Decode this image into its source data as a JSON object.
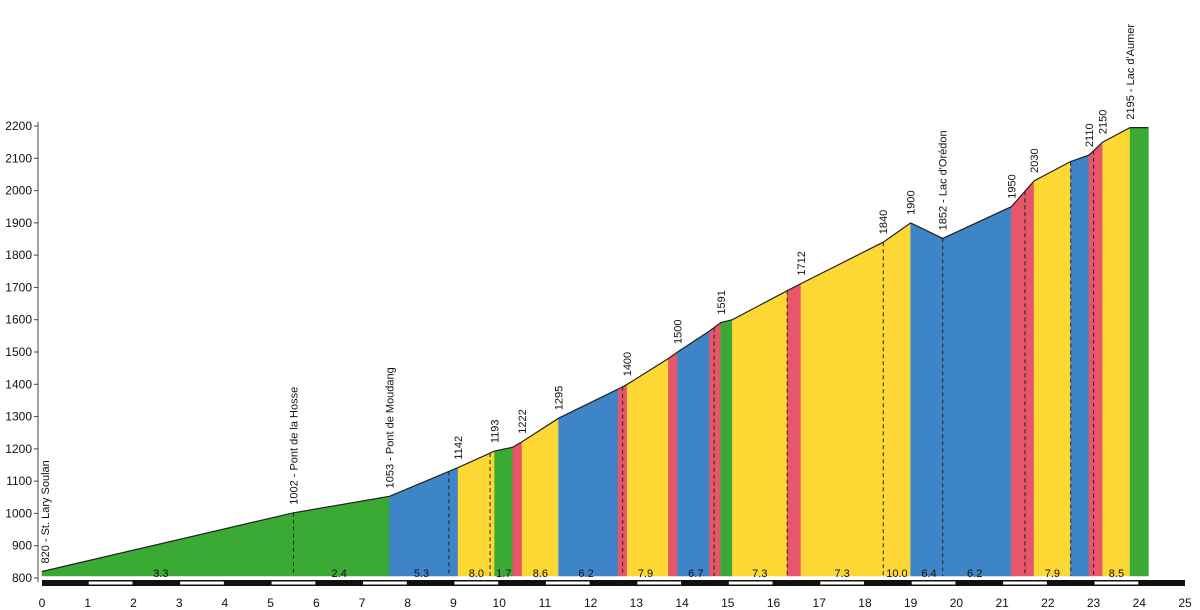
{
  "chart_data": {
    "type": "area",
    "title": "",
    "xlabel": "",
    "ylabel": "",
    "xlim": [
      0,
      25
    ],
    "ylim": [
      800,
      2200
    ],
    "x_ticks": [
      "0",
      "1",
      "2",
      "3",
      "4",
      "5",
      "6",
      "7",
      "8",
      "9",
      "10",
      "11",
      "12",
      "13",
      "14",
      "15",
      "16",
      "17",
      "18",
      "19",
      "20",
      "21",
      "22",
      "23",
      "24",
      "25"
    ],
    "y_ticks": [
      "800",
      "900",
      "1000",
      "1100",
      "1200",
      "1300",
      "1400",
      "1500",
      "1600",
      "1700",
      "1800",
      "1900",
      "2000",
      "2100",
      "2200"
    ],
    "grid": false,
    "legend": "none",
    "colors": {
      "green": "#3aaa35",
      "blue": "#3d85c6",
      "yellow": "#fdd835",
      "red": "#e8566a",
      "outline": "#222222"
    },
    "profile": [
      {
        "x": 0.0,
        "y": 820
      },
      {
        "x": 5.5,
        "y": 1002
      },
      {
        "x": 7.6,
        "y": 1053
      },
      {
        "x": 9.1,
        "y": 1142
      },
      {
        "x": 9.9,
        "y": 1193
      },
      {
        "x": 10.3,
        "y": 1205
      },
      {
        "x": 10.5,
        "y": 1222
      },
      {
        "x": 11.3,
        "y": 1295
      },
      {
        "x": 12.6,
        "y": 1385
      },
      {
        "x": 12.8,
        "y": 1400
      },
      {
        "x": 13.7,
        "y": 1480
      },
      {
        "x": 13.9,
        "y": 1500
      },
      {
        "x": 14.6,
        "y": 1565
      },
      {
        "x": 14.85,
        "y": 1591
      },
      {
        "x": 15.1,
        "y": 1600
      },
      {
        "x": 16.3,
        "y": 1690
      },
      {
        "x": 16.6,
        "y": 1712
      },
      {
        "x": 18.4,
        "y": 1840
      },
      {
        "x": 19.0,
        "y": 1900
      },
      {
        "x": 19.7,
        "y": 1852
      },
      {
        "x": 21.2,
        "y": 1950
      },
      {
        "x": 21.7,
        "y": 2030
      },
      {
        "x": 22.5,
        "y": 2090
      },
      {
        "x": 22.9,
        "y": 2110
      },
      {
        "x": 23.2,
        "y": 2150
      },
      {
        "x": 23.8,
        "y": 2195
      },
      {
        "x": 24.0,
        "y": 2195
      }
    ],
    "segments": [
      {
        "from": 0.0,
        "to": 7.6,
        "color": "green"
      },
      {
        "from": 7.6,
        "to": 9.1,
        "color": "blue"
      },
      {
        "from": 9.1,
        "to": 9.9,
        "color": "yellow"
      },
      {
        "from": 9.9,
        "to": 10.3,
        "color": "green"
      },
      {
        "from": 10.3,
        "to": 10.5,
        "color": "red"
      },
      {
        "from": 10.5,
        "to": 11.3,
        "color": "yellow"
      },
      {
        "from": 11.3,
        "to": 12.6,
        "color": "blue"
      },
      {
        "from": 12.6,
        "to": 12.8,
        "color": "red"
      },
      {
        "from": 12.8,
        "to": 13.7,
        "color": "yellow"
      },
      {
        "from": 13.7,
        "to": 13.9,
        "color": "red"
      },
      {
        "from": 13.9,
        "to": 14.6,
        "color": "blue"
      },
      {
        "from": 14.6,
        "to": 14.85,
        "color": "red"
      },
      {
        "from": 14.85,
        "to": 15.1,
        "color": "green"
      },
      {
        "from": 15.1,
        "to": 16.3,
        "color": "yellow"
      },
      {
        "from": 16.3,
        "to": 16.6,
        "color": "red"
      },
      {
        "from": 16.6,
        "to": 19.0,
        "color": "yellow"
      },
      {
        "from": 19.0,
        "to": 21.2,
        "color": "blue"
      },
      {
        "from": 21.2,
        "to": 21.7,
        "color": "red"
      },
      {
        "from": 21.7,
        "to": 22.5,
        "color": "yellow"
      },
      {
        "from": 22.5,
        "to": 22.9,
        "color": "blue"
      },
      {
        "from": 22.9,
        "to": 23.2,
        "color": "red"
      },
      {
        "from": 23.2,
        "to": 23.8,
        "color": "yellow"
      },
      {
        "from": 23.8,
        "to": 24.2,
        "color": "green"
      }
    ],
    "end_x": 24.2,
    "dividers": [
      5.5,
      8.9,
      9.8,
      12.7,
      14.7,
      16.3,
      18.4,
      19.7,
      21.5,
      22.5,
      23.0
    ],
    "altitude_labels": [
      {
        "x": 0.0,
        "y": 820,
        "text": "820 - St. Lary Soulan"
      },
      {
        "x": 5.5,
        "y": 1002,
        "text": "1002 - Pont de la Hosse"
      },
      {
        "x": 7.6,
        "y": 1053,
        "text": "1053 - Pont de Moudang"
      },
      {
        "x": 9.1,
        "y": 1142,
        "text": "1142"
      },
      {
        "x": 9.9,
        "y": 1193,
        "text": "1193"
      },
      {
        "x": 10.5,
        "y": 1222,
        "text": "1222"
      },
      {
        "x": 11.3,
        "y": 1295,
        "text": "1295"
      },
      {
        "x": 12.8,
        "y": 1400,
        "text": "1400"
      },
      {
        "x": 13.9,
        "y": 1500,
        "text": "1500"
      },
      {
        "x": 14.85,
        "y": 1591,
        "text": "1591"
      },
      {
        "x": 16.6,
        "y": 1712,
        "text": "1712"
      },
      {
        "x": 18.4,
        "y": 1840,
        "text": "1840"
      },
      {
        "x": 19.0,
        "y": 1900,
        "text": "1900"
      },
      {
        "x": 19.7,
        "y": 1852,
        "text": "1852 - Lac d'Orédon"
      },
      {
        "x": 21.2,
        "y": 1950,
        "text": "1950"
      },
      {
        "x": 21.7,
        "y": 2030,
        "text": "2030"
      },
      {
        "x": 22.9,
        "y": 2110,
        "text": "2110"
      },
      {
        "x": 23.2,
        "y": 2150,
        "text": "2150"
      },
      {
        "x": 23.8,
        "y": 2195,
        "text": "2195 - Lac d'Aumer"
      }
    ],
    "gradients": [
      {
        "x": 2.6,
        "text": "3.3"
      },
      {
        "x": 6.5,
        "text": "2.4"
      },
      {
        "x": 8.3,
        "text": "5.3"
      },
      {
        "x": 9.5,
        "text": "8.0"
      },
      {
        "x": 10.1,
        "text": "1.7"
      },
      {
        "x": 10.9,
        "text": "8.6"
      },
      {
        "x": 11.9,
        "text": "6.2"
      },
      {
        "x": 13.2,
        "text": "7.9"
      },
      {
        "x": 14.3,
        "text": "6.7"
      },
      {
        "x": 15.7,
        "text": "7.3"
      },
      {
        "x": 17.5,
        "text": "7.3"
      },
      {
        "x": 18.7,
        "text": "10.0"
      },
      {
        "x": 19.4,
        "text": "6.4"
      },
      {
        "x": 20.4,
        "text": "6.2"
      },
      {
        "x": 22.1,
        "text": "7.9"
      },
      {
        "x": 23.5,
        "text": "8.5"
      }
    ]
  }
}
